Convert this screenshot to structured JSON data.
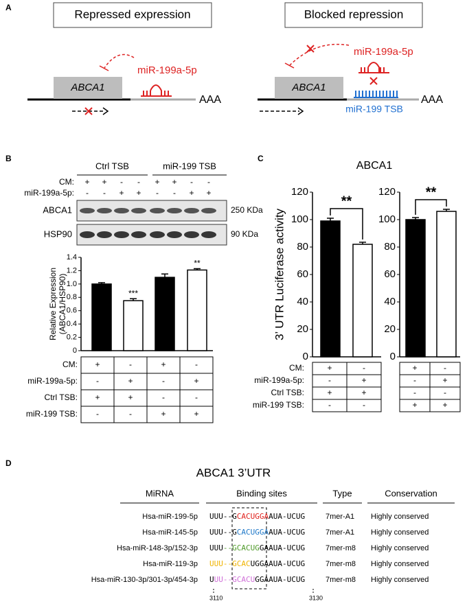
{
  "panel_a": {
    "label": "A",
    "left_title": "Repressed expression",
    "right_title": "Blocked repression",
    "left_gene": "ABCA1",
    "right_gene": "ABCA1",
    "left_mirna": "miR-199a-5p",
    "right_mirna": "miR-199a-5p",
    "left_tail": "AAA",
    "right_tail": "AAA",
    "tsb": "miR-199 TSB"
  },
  "panel_b": {
    "label": "B",
    "groups": [
      "Ctrl TSB",
      "miR-199 TSB"
    ],
    "blot_conditions": [
      {
        "name": "CM:",
        "signs": [
          "+",
          "+",
          "-",
          "-",
          "+",
          "+",
          "-",
          "-"
        ]
      },
      {
        "name": "miR-199a-5p:",
        "signs": [
          "-",
          "-",
          "+",
          "+",
          "-",
          "-",
          "+",
          "+"
        ]
      }
    ],
    "blots": [
      {
        "name": "ABCA1",
        "size": "250 KDa"
      },
      {
        "name": "HSP90",
        "size": "90 KDa"
      }
    ],
    "table": [
      {
        "name": "CM:",
        "signs": [
          "+",
          "-",
          "+",
          "-"
        ]
      },
      {
        "name": "miR-199a-5p:",
        "signs": [
          "-",
          "+",
          "-",
          "+"
        ]
      },
      {
        "name": "Ctrl TSB:",
        "signs": [
          "+",
          "+",
          "-",
          "-"
        ]
      },
      {
        "name": "miR-199 TSB:",
        "signs": [
          "-",
          "-",
          "+",
          "+"
        ]
      }
    ]
  },
  "panel_c": {
    "label": "C",
    "title": "ABCA1",
    "ylabel": "3’ UTR Luciferase activity",
    "table_rows": [
      "CM:",
      "miR-199a-5p:",
      "Ctrl TSB:",
      "miR-199 TSB:"
    ],
    "table_left": [
      [
        "+",
        "-"
      ],
      [
        "-",
        "+"
      ],
      [
        "+",
        "+"
      ],
      [
        "-",
        "-"
      ]
    ],
    "table_right": [
      [
        "+",
        "-"
      ],
      [
        "-",
        "+"
      ],
      [
        "-",
        "-"
      ],
      [
        "+",
        "+"
      ]
    ]
  },
  "chart_data": [
    {
      "type": "bar",
      "ylabel": [
        "Relative Expression",
        "(ABCA1/HSP90)"
      ],
      "values": [
        1.0,
        0.75,
        1.1,
        1.21
      ],
      "errors": [
        0.02,
        0.03,
        0.05,
        0.02
      ],
      "colors": [
        "#000000",
        "#ffffff",
        "#000000",
        "#ffffff"
      ],
      "significance": [
        null,
        "***",
        null,
        "**"
      ],
      "ylim": [
        0,
        1.4
      ],
      "yticks": [
        0,
        0.2,
        0.4,
        0.6,
        0.8,
        {
          "value": 1,
          "label": "1.0"
        },
        1.2,
        1.4
      ]
    },
    {
      "type": "bar",
      "values": [
        99,
        82
      ],
      "errors": [
        2,
        1.5
      ],
      "colors": [
        "#000000",
        "#ffffff"
      ],
      "comparison": "**",
      "ylim": [
        0,
        120
      ],
      "yticks": [
        0,
        20,
        40,
        60,
        80,
        100,
        120
      ]
    },
    {
      "type": "bar",
      "values": [
        100,
        106
      ],
      "errors": [
        1.5,
        1.5
      ],
      "colors": [
        "#000000",
        "#ffffff"
      ],
      "comparison": "**",
      "ylim": [
        0,
        120
      ],
      "yticks": [
        0,
        20,
        40,
        60,
        80,
        100,
        120
      ]
    }
  ],
  "panel_d": {
    "label": "D",
    "title": "ABCA1 3’UTR",
    "headers": [
      "MiRNA",
      "Binding sites",
      "Type",
      "Conservation"
    ],
    "rows": [
      {
        "mirna": "Hsa-miR-199-5p",
        "sites": [
          {
            "text": "UUU--G",
            "color": "#000000"
          },
          {
            "text": "CACUGGA",
            "color": "#e0201b"
          },
          {
            "text": "AUA-UCUG",
            "color": "#000000"
          }
        ],
        "type": "7mer-A1",
        "conservation": "Highly conserved"
      },
      {
        "mirna": "Hsa-miR-145-5p",
        "sites": [
          {
            "text": "UUU--G",
            "color": "#000000"
          },
          {
            "text": "CACUGGA",
            "color": "#1f78c8"
          },
          {
            "text": "AUA-UCUG",
            "color": "#000000"
          }
        ],
        "type": "7mer-A1",
        "conservation": "Highly conserved"
      },
      {
        "mirna": "Hsa-miR-148-3p/152-3p",
        "sites": [
          {
            "text": "UUU",
            "color": "#000000"
          },
          {
            "text": "--GCACUG",
            "color": "#4f9a2a"
          },
          {
            "text": "GAAUA-UCUG",
            "color": "#000000"
          }
        ],
        "type": "7mer-m8",
        "conservation": "Highly conserved"
      },
      {
        "mirna": "Hsa-miR-119-3p",
        "sites": [
          {
            "text": "UUU--GCAC",
            "color": "#f0b400"
          },
          {
            "text": "UGGAAUA-UCUG",
            "color": "#000000"
          }
        ],
        "type": "7mer-m8",
        "conservation": "Highly conserved"
      },
      {
        "mirna": "Hsa-miR-130-3p/301-3p/454-3p",
        "sites": [
          {
            "text": "U",
            "color": "#000000"
          },
          {
            "text": "UU--GCACU",
            "color": "#d070d8"
          },
          {
            "text": "GGAAUA-UCUG",
            "color": "#000000"
          }
        ],
        "type": "7mer-m8",
        "conservation": "Highly conserved"
      }
    ],
    "positions": [
      "3110",
      "3130"
    ]
  }
}
